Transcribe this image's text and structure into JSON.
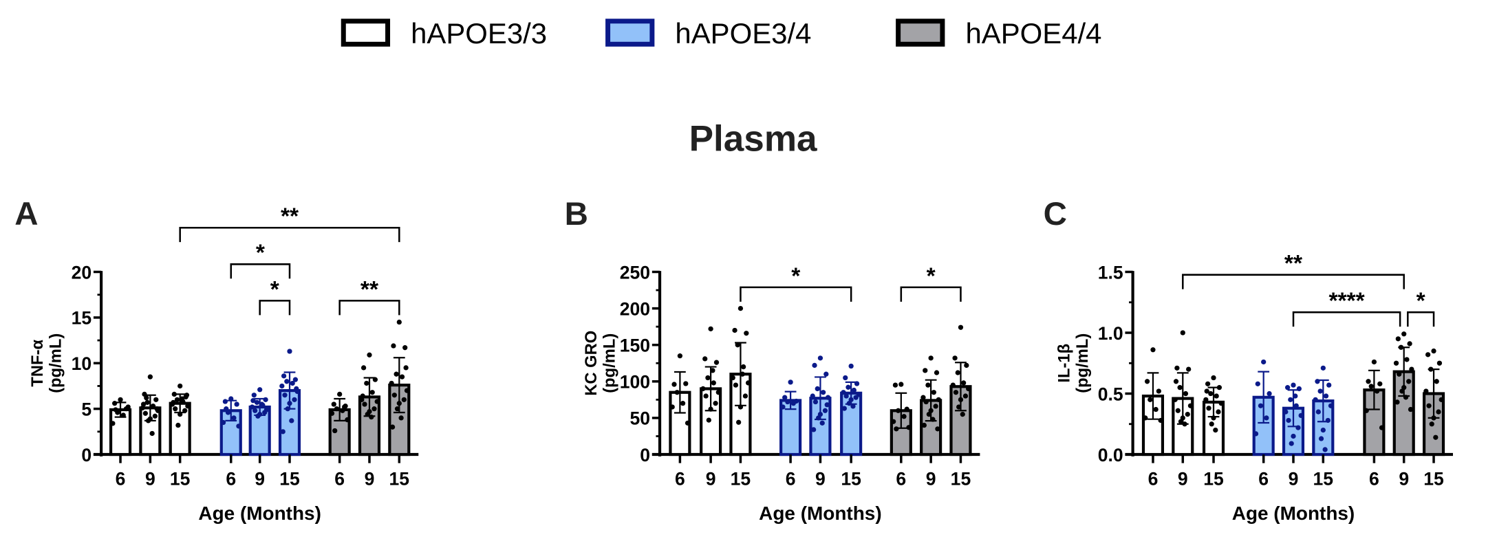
{
  "title": "Plasma",
  "legend": [
    {
      "label": "hAPOE3/3",
      "fill": "#ffffff",
      "stroke": "#000000"
    },
    {
      "label": "hAPOE3/4",
      "fill": "#92c1f9",
      "stroke": "#0b1a8a"
    },
    {
      "label": "hAPOE4/4",
      "fill": "#a3a3a7",
      "stroke": "#000000"
    }
  ],
  "colors": {
    "blue_point": "#0b1a8a",
    "black": "#000000"
  },
  "chart_data": [
    {
      "panel": "A",
      "type": "bar",
      "ylabel": [
        "TNF-α",
        "(pg/mL)"
      ],
      "xlabel": "Age (Months)",
      "ylim": [
        0,
        20
      ],
      "yticks": [
        "0",
        "5",
        "10",
        "15",
        "20"
      ],
      "ytick_values": [
        0,
        5,
        10,
        15,
        20
      ],
      "minor_step": 2.5,
      "categories": [
        "6",
        "9",
        "15",
        "6",
        "9",
        "15",
        "6",
        "9",
        "15"
      ],
      "genotype": [
        0,
        0,
        0,
        1,
        1,
        1,
        2,
        2,
        2
      ],
      "means": [
        4.9,
        5.1,
        5.6,
        4.8,
        5.2,
        7.0,
        4.9,
        6.3,
        7.6
      ],
      "sd": [
        0.8,
        1.4,
        1.0,
        1.1,
        0.9,
        2.0,
        1.2,
        2.1,
        3.0
      ],
      "points": [
        [
          6.0,
          5.6,
          5.0,
          4.6,
          4.3,
          3.4,
          5.2,
          4.9
        ],
        [
          8.5,
          6.6,
          6.0,
          5.7,
          5.3,
          5.1,
          4.8,
          4.5,
          4.2,
          3.9,
          3.7,
          2.3,
          5.5,
          5.0,
          6.2
        ],
        [
          7.5,
          6.6,
          6.3,
          6.0,
          5.8,
          5.5,
          5.3,
          5.0,
          4.8,
          4.4,
          3.2,
          6.1,
          5.7,
          6.5
        ],
        [
          6.1,
          5.8,
          5.5,
          4.6,
          4.0,
          3.5,
          3.1,
          5.0
        ],
        [
          7.1,
          6.5,
          6.0,
          5.7,
          5.4,
          5.2,
          5.0,
          4.8,
          4.6,
          4.4,
          4.2,
          5.5,
          5.9,
          4.9
        ],
        [
          11.3,
          8.6,
          8.2,
          8.0,
          7.8,
          7.5,
          6.9,
          6.5,
          6.0,
          5.6,
          5.0,
          3.7,
          2.5,
          7.2
        ],
        [
          6.6,
          5.5,
          5.3,
          5.0,
          4.8,
          4.5,
          3.8,
          2.6,
          5.2
        ],
        [
          10.9,
          9.5,
          8.2,
          7.8,
          6.8,
          6.0,
          5.8,
          5.5,
          5.0,
          4.7,
          4.4,
          4.1,
          6.4
        ],
        [
          14.5,
          11.9,
          11.7,
          8.8,
          8.5,
          7.8,
          7.0,
          6.5,
          6.0,
          5.6,
          5.0,
          4.0,
          3.0,
          9.5
        ]
      ],
      "comparisons": [
        {
          "from": 2,
          "to": 8,
          "label": "**",
          "level": 0
        },
        {
          "from": 3,
          "to": 5,
          "label": "*",
          "level": 1
        },
        {
          "from": 4,
          "to": 5,
          "label": "*",
          "level": 2
        },
        {
          "from": 6,
          "to": 8,
          "label": "**",
          "level": 2
        }
      ]
    },
    {
      "panel": "B",
      "type": "bar",
      "ylabel": [
        "KC GRO",
        "(pg/mL)"
      ],
      "xlabel": "Age (Months)",
      "ylim": [
        0,
        250
      ],
      "yticks": [
        "0",
        "50",
        "100",
        "150",
        "200",
        "250"
      ],
      "ytick_values": [
        0,
        50,
        100,
        150,
        200,
        250
      ],
      "minor_step": 25,
      "categories": [
        "6",
        "9",
        "15",
        "6",
        "9",
        "15",
        "6",
        "9",
        "15"
      ],
      "genotype": [
        0,
        0,
        0,
        1,
        1,
        1,
        2,
        2,
        2
      ],
      "means": [
        85,
        90,
        110,
        74,
        77,
        84,
        60,
        74,
        93
      ],
      "sd": [
        28,
        30,
        43,
        12,
        29,
        15,
        24,
        28,
        33
      ],
      "points": [
        [
          135,
          96,
          97,
          85,
          70,
          65,
          43
        ],
        [
          172,
          131,
          126,
          105,
          98,
          90,
          85,
          80,
          70,
          62,
          47,
          115
        ],
        [
          200,
          170,
          166,
          150,
          120,
          105,
          98,
          95,
          80,
          65,
          44,
          110
        ],
        [
          99,
          78,
          73,
          72,
          70,
          65
        ],
        [
          132,
          122,
          110,
          90,
          85,
          80,
          78,
          72,
          60,
          55,
          50,
          43,
          34,
          68
        ],
        [
          121,
          105,
          97,
          92,
          88,
          85,
          82,
          80,
          78,
          75,
          70,
          66,
          63
        ],
        [
          96,
          95,
          62,
          60,
          52,
          45,
          37,
          35
        ],
        [
          132,
          115,
          112,
          95,
          85,
          78,
          75,
          72,
          66,
          60,
          55,
          48,
          40,
          35
        ],
        [
          174,
          132,
          122,
          112,
          98,
          95,
          90,
          85,
          80,
          75,
          65,
          55
        ]
      ],
      "comparisons": [
        {
          "from": 2,
          "to": 5,
          "label": "*",
          "level": 0
        },
        {
          "from": 6,
          "to": 8,
          "label": "*",
          "level": 0
        }
      ]
    },
    {
      "panel": "C",
      "type": "bar",
      "ylabel": [
        "IL-1β",
        "(pg/mL)"
      ],
      "xlabel": "Age (Months)",
      "ylim": [
        0,
        1.5
      ],
      "yticks": [
        "0.0",
        "0.5",
        "1.0",
        "1.5"
      ],
      "ytick_values": [
        0,
        0.5,
        1.0,
        1.5
      ],
      "minor_step": 0.25,
      "categories": [
        "6",
        "9",
        "15",
        "6",
        "9",
        "15",
        "6",
        "9",
        "15"
      ],
      "genotype": [
        0,
        0,
        0,
        1,
        1,
        1,
        2,
        2,
        2
      ],
      "means": [
        0.48,
        0.46,
        0.43,
        0.47,
        0.38,
        0.44,
        0.53,
        0.68,
        0.5
      ],
      "sd": [
        0.19,
        0.21,
        0.12,
        0.21,
        0.15,
        0.17,
        0.16,
        0.2,
        0.2
      ],
      "points": [
        [
          0.86,
          0.6,
          0.52,
          0.45,
          0.37,
          0.3,
          0.28
        ],
        [
          1.0,
          0.71,
          0.7,
          0.55,
          0.5,
          0.45,
          0.4,
          0.36,
          0.33,
          0.3,
          0.27,
          0.25,
          0.6
        ],
        [
          0.63,
          0.58,
          0.55,
          0.5,
          0.48,
          0.45,
          0.42,
          0.38,
          0.35,
          0.3,
          0.25,
          0.2,
          0.52
        ],
        [
          0.76,
          0.58,
          0.5,
          0.4,
          0.3,
          0.17
        ],
        [
          0.57,
          0.55,
          0.54,
          0.45,
          0.4,
          0.35,
          0.32,
          0.28,
          0.22,
          0.15,
          0.09,
          0.48
        ],
        [
          0.71,
          0.6,
          0.57,
          0.52,
          0.48,
          0.45,
          0.4,
          0.35,
          0.28,
          0.2,
          0.13,
          0.04
        ],
        [
          0.76,
          0.6,
          0.58,
          0.56,
          0.52,
          0.36,
          0.22
        ],
        [
          0.99,
          0.95,
          0.91,
          0.88,
          0.78,
          0.75,
          0.7,
          0.66,
          0.6,
          0.55,
          0.52,
          0.47,
          0.43,
          0.37
        ],
        [
          0.85,
          0.82,
          0.75,
          0.7,
          0.6,
          0.52,
          0.45,
          0.4,
          0.35,
          0.3,
          0.25,
          0.14
        ]
      ],
      "comparisons": [
        {
          "from": 1,
          "to": 7,
          "label": "**",
          "level": 0
        },
        {
          "from": 4,
          "to": 7,
          "label": "****",
          "level": 1
        },
        {
          "from": 7,
          "to": 8,
          "label": "*",
          "level": 1
        }
      ]
    }
  ]
}
